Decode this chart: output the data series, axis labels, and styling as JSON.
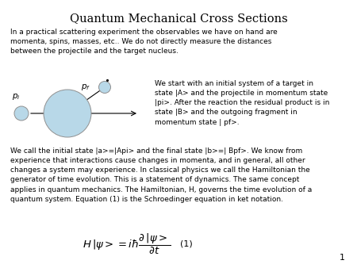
{
  "title": "Quantum Mechanical Cross Sections",
  "title_fontsize": 10,
  "background_color": "#ffffff",
  "text_color": "#000000",
  "paragraph1": "In a practical scattering experiment the observables we have on hand are\nmomenta, spins, masses, etc.. We do not directly measure the distances\nbetween the projectile and the target nucleus.",
  "right_text": "We start with an initial system of a target in\nstate |A> and the projectile in momentum state\n|pi>. After the reaction the residual product is in\nstate |B> and the outgoing fragment in\nmomentum state | pf>.",
  "paragraph2": "We call the initial state |a>=|Api> and the final state |b>=| Bpf>. We know from\nexperience that interactions cause changes in momenta, and in general, all other\nchanges a system may experience. In classical physics we call the Hamiltonian the\ngenerator of time evolution. This is a statement of dynamics. The same concept\napplies in quantum mechanics. The Hamiltonian, H, governs the time evolution of a\nquantum system. Equation (1) is the Schroedinger equation in ket notation.",
  "equation": "$H\\,|\\psi>=i\\hbar\\dfrac{\\partial\\,|\\psi>}{\\partial t}$",
  "eq_label": "(1)",
  "page_number": "1",
  "circle_color": "#b8d8e8",
  "circle_edge_color": "#909090"
}
